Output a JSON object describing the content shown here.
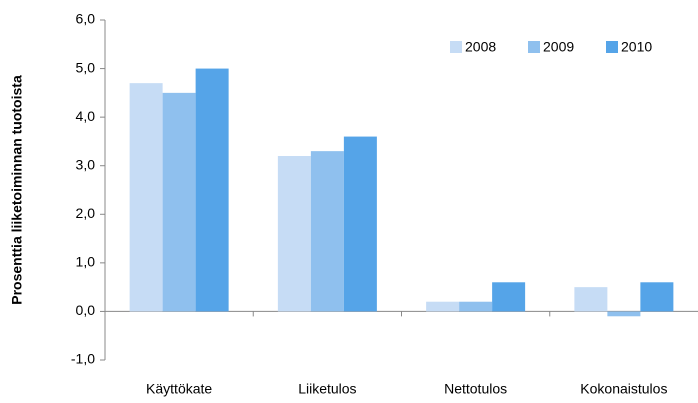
{
  "chart_data": {
    "type": "bar",
    "y_label": "Prosenttia liiketoiminnan tuotoista",
    "categories": [
      "Käyttökate",
      "Liiketulos",
      "Nettotulos",
      "Kokonaistulos"
    ],
    "series": [
      {
        "name": "2008",
        "color": "#c6dcf5",
        "values": [
          4.7,
          3.2,
          0.2,
          0.5
        ]
      },
      {
        "name": "2009",
        "color": "#8fc0ee",
        "values": [
          4.5,
          3.3,
          0.2,
          -0.1
        ]
      },
      {
        "name": "2010",
        "color": "#55a4e8",
        "values": [
          5.0,
          3.6,
          0.6,
          0.6
        ]
      }
    ],
    "ylim": [
      -1,
      6
    ],
    "yticks": [
      {
        "value": -1,
        "label": "-1,0"
      },
      {
        "value": 0,
        "label": "0,0"
      },
      {
        "value": 1,
        "label": "1,0"
      },
      {
        "value": 2,
        "label": "2,0"
      },
      {
        "value": 3,
        "label": "3,0"
      },
      {
        "value": 4,
        "label": "4,0"
      },
      {
        "value": 5,
        "label": "5,0"
      },
      {
        "value": 6,
        "label": "6,0"
      }
    ],
    "legend": "upper right"
  }
}
